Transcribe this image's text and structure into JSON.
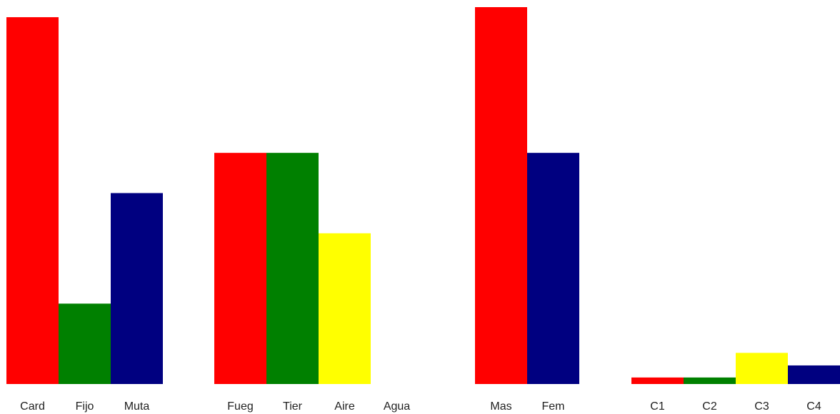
{
  "chart_data": [
    {
      "type": "bar",
      "title": "",
      "xlabel": "",
      "ylabel": "",
      "categories": [
        "Card",
        "Fijo",
        "Muta"
      ],
      "values": [
        7.3,
        1.6,
        3.8
      ],
      "colors": [
        "#ff0000",
        "#008000",
        "#000080"
      ],
      "ylim": [
        0,
        7.5
      ],
      "grid": false,
      "legend": "none"
    },
    {
      "type": "bar",
      "title": "",
      "xlabel": "",
      "ylabel": "",
      "categories": [
        "Fueg",
        "Tier",
        "Aire",
        "Agua"
      ],
      "values": [
        4.6,
        4.6,
        3.0,
        0
      ],
      "colors": [
        "#ff0000",
        "#008000",
        "#ffff00",
        "#000080"
      ],
      "ylim": [
        0,
        7.5
      ],
      "grid": false,
      "legend": "none"
    },
    {
      "type": "bar",
      "title": "",
      "xlabel": "",
      "ylabel": "",
      "categories": [
        "Mas",
        "Fem"
      ],
      "values": [
        7.5,
        4.6
      ],
      "colors": [
        "#ff0000",
        "#000080"
      ],
      "ylim": [
        0,
        7.5
      ],
      "grid": false,
      "legend": "none"
    },
    {
      "type": "bar",
      "title": "",
      "xlabel": "",
      "ylabel": "",
      "categories": [
        "C1",
        "C2",
        "C3",
        "C4"
      ],
      "values": [
        0.13,
        0.13,
        0.62,
        0.37
      ],
      "colors": [
        "#ff0000",
        "#008000",
        "#ffff00",
        "#000080"
      ],
      "ylim": [
        0,
        7.5
      ],
      "grid": false,
      "legend": "none"
    }
  ]
}
